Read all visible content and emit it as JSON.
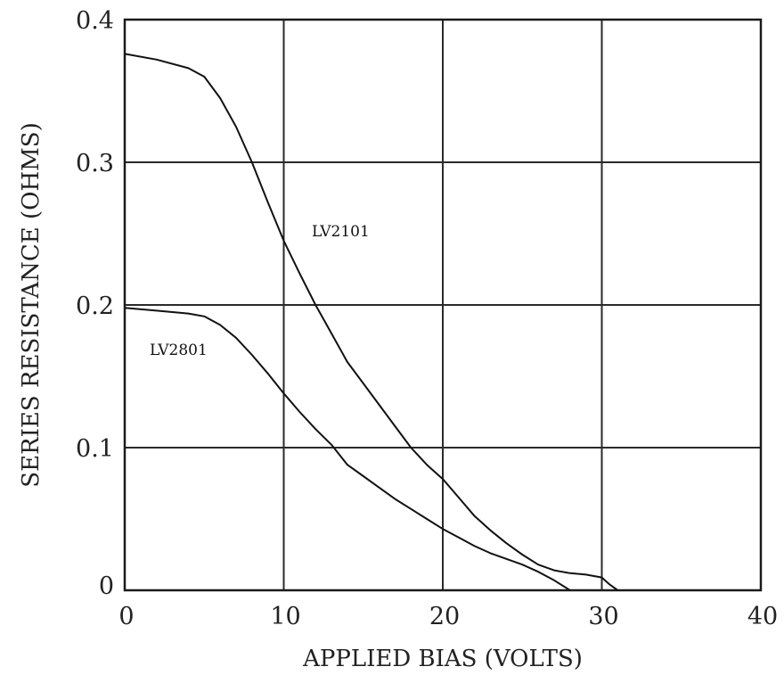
{
  "chart_data": {
    "type": "line",
    "title": "",
    "xlabel": "APPLIED BIAS (VOLTS)",
    "ylabel": "SERIES RESISTANCE (OHMS)",
    "xlim": [
      0,
      40
    ],
    "ylim": [
      0,
      0.4
    ],
    "x_ticks": [
      "0",
      "10",
      "20",
      "30",
      "40"
    ],
    "y_ticks": [
      "0",
      "0.1",
      "0.2",
      "0.3",
      "0.4"
    ],
    "grid": true,
    "series": [
      {
        "name": "LV2101",
        "points": [
          [
            0,
            0.376
          ],
          [
            2,
            0.372
          ],
          [
            4,
            0.366
          ],
          [
            5,
            0.36
          ],
          [
            6,
            0.345
          ],
          [
            7,
            0.325
          ],
          [
            8,
            0.3
          ],
          [
            9,
            0.272
          ],
          [
            10,
            0.245
          ],
          [
            11,
            0.222
          ],
          [
            12,
            0.2
          ],
          [
            13,
            0.18
          ],
          [
            14,
            0.16
          ],
          [
            15,
            0.145
          ],
          [
            16,
            0.13
          ],
          [
            17,
            0.115
          ],
          [
            18,
            0.1
          ],
          [
            19,
            0.088
          ],
          [
            20,
            0.078
          ],
          [
            21,
            0.065
          ],
          [
            22,
            0.052
          ],
          [
            23,
            0.042
          ],
          [
            24,
            0.033
          ],
          [
            25,
            0.025
          ],
          [
            26,
            0.018
          ],
          [
            27,
            0.014
          ],
          [
            28,
            0.012
          ],
          [
            29,
            0.011
          ],
          [
            30,
            0.009
          ],
          [
            30.5,
            0.004
          ],
          [
            31,
            0
          ]
        ]
      },
      {
        "name": "LV2801",
        "points": [
          [
            0,
            0.198
          ],
          [
            2,
            0.196
          ],
          [
            4,
            0.194
          ],
          [
            5,
            0.192
          ],
          [
            6,
            0.186
          ],
          [
            7,
            0.177
          ],
          [
            8,
            0.165
          ],
          [
            9,
            0.152
          ],
          [
            10,
            0.138
          ],
          [
            11,
            0.125
          ],
          [
            12,
            0.113
          ],
          [
            13,
            0.102
          ],
          [
            14,
            0.088
          ],
          [
            15,
            0.08
          ],
          [
            16,
            0.072
          ],
          [
            17,
            0.064
          ],
          [
            18,
            0.057
          ],
          [
            19,
            0.05
          ],
          [
            20,
            0.043
          ],
          [
            21,
            0.037
          ],
          [
            22,
            0.031
          ],
          [
            23,
            0.026
          ],
          [
            24,
            0.022
          ],
          [
            25,
            0.018
          ],
          [
            26,
            0.013
          ],
          [
            27,
            0.007
          ],
          [
            28,
            0
          ]
        ]
      }
    ]
  }
}
